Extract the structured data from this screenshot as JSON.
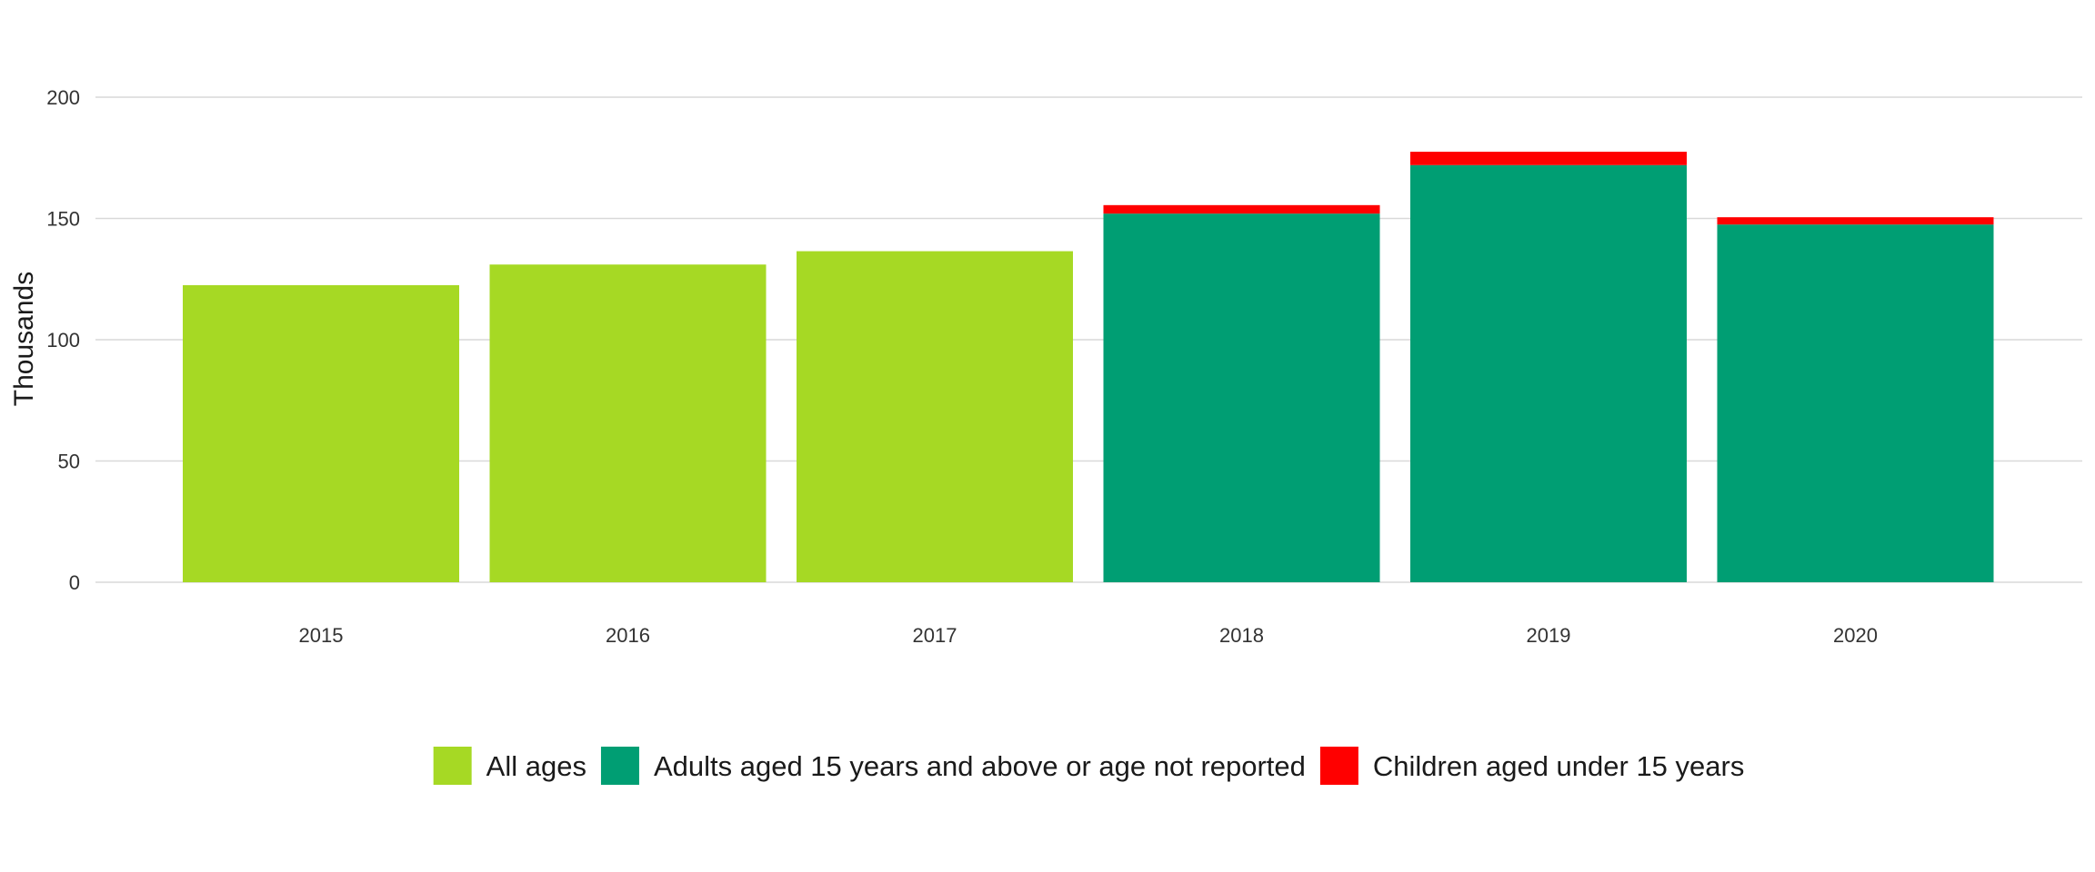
{
  "chart_data": {
    "type": "bar",
    "stacked": true,
    "title": "",
    "xlabel": "",
    "ylabel": "Thousands",
    "ylim": [
      0,
      200
    ],
    "yticks": [
      0,
      50,
      100,
      150,
      200
    ],
    "grid": true,
    "legend_position": "bottom",
    "categories": [
      "2015",
      "2016",
      "2017",
      "2018",
      "2019",
      "2020"
    ],
    "series": [
      {
        "name": "All ages",
        "color": "#a6d924",
        "values": [
          122.5,
          131,
          136.5,
          null,
          null,
          null
        ]
      },
      {
        "name": "Adults aged 15 years and above or age not reported",
        "color": "#009e73",
        "values": [
          null,
          null,
          null,
          152,
          172,
          147.5
        ]
      },
      {
        "name": "Children aged under 15 years",
        "color": "#ff0000",
        "values": [
          null,
          null,
          null,
          3.5,
          5.5,
          3
        ]
      }
    ]
  }
}
